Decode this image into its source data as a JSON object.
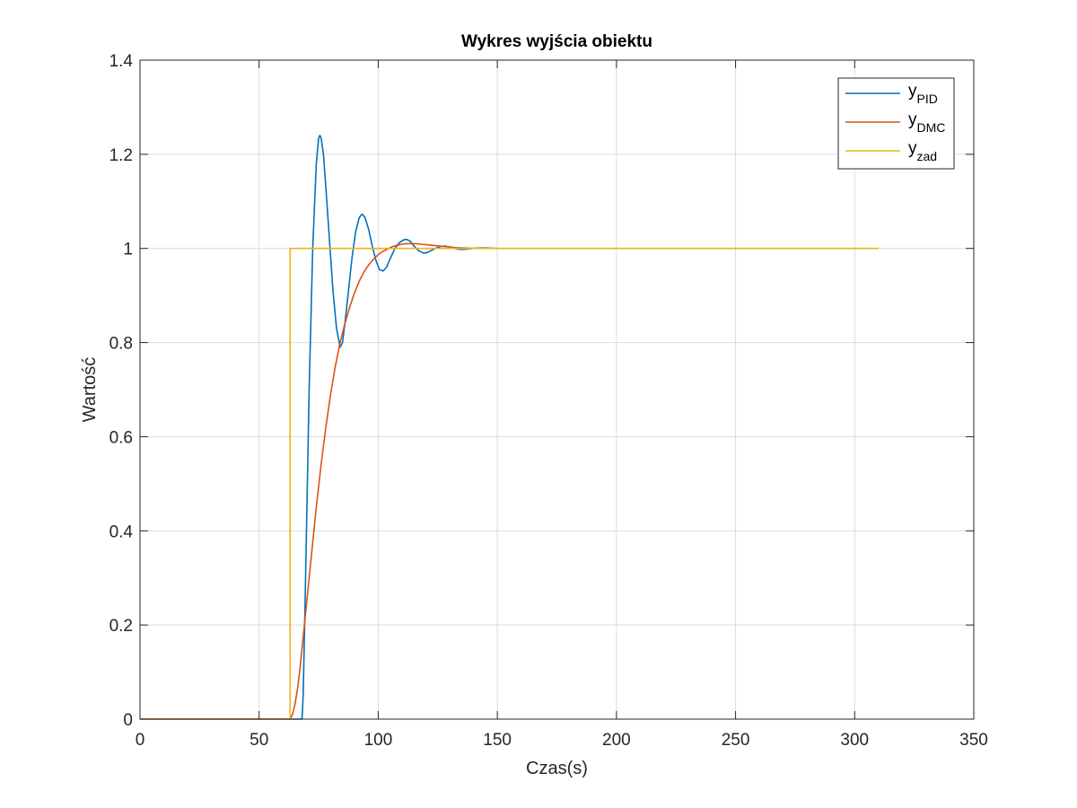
{
  "chart_data": {
    "type": "line",
    "title": "Wykres wyjścia obiektu",
    "xlabel": "Czas(s)",
    "ylabel": "Wartość",
    "xlim": [
      0,
      350
    ],
    "ylim": [
      0,
      1.4
    ],
    "xticks": [
      0,
      50,
      100,
      150,
      200,
      250,
      300,
      350
    ],
    "yticks": [
      0,
      0.2,
      0.4,
      0.6,
      0.8,
      1,
      1.2,
      1.4
    ],
    "xtick_labels": [
      "0",
      "50",
      "100",
      "150",
      "200",
      "250",
      "300",
      "350"
    ],
    "ytick_labels": [
      "0",
      "0.2",
      "0.4",
      "0.6",
      "0.8",
      "1",
      "1.2",
      "1.4"
    ],
    "grid": true,
    "legend_position": "top-right",
    "series": [
      {
        "name": "y_PID",
        "label_base": "y",
        "label_sub": "PID",
        "color": "#0072BD",
        "x": [
          0,
          68,
          68.5,
          69.5,
          71,
          72.5,
          74,
          75,
          75.5,
          76,
          77,
          78,
          79.5,
          81,
          82.5,
          84,
          85,
          86,
          87.5,
          89,
          90.5,
          92,
          93,
          93.5,
          94.5,
          96,
          97.5,
          99,
          100.5,
          102,
          103.5,
          105,
          107,
          109,
          111,
          112,
          113.5,
          115,
          117,
          119,
          120.5,
          122,
          124,
          126,
          128,
          130,
          132,
          134,
          136,
          138,
          140,
          143,
          146,
          148,
          150
        ],
        "y": [
          0,
          0,
          0.05,
          0.3,
          0.7,
          1.0,
          1.18,
          1.235,
          1.24,
          1.235,
          1.2,
          1.13,
          1.02,
          0.91,
          0.83,
          0.79,
          0.8,
          0.84,
          0.91,
          0.98,
          1.035,
          1.065,
          1.072,
          1.072,
          1.065,
          1.04,
          1.005,
          0.975,
          0.955,
          0.952,
          0.96,
          0.978,
          1.0,
          1.013,
          1.019,
          1.019,
          1.015,
          1.005,
          0.995,
          0.99,
          0.991,
          0.995,
          1.0,
          1.004,
          1.005,
          1.003,
          1.0,
          0.998,
          0.998,
          0.999,
          1.0,
          1.001,
          1.001,
          1.0,
          1.0
        ]
      },
      {
        "name": "y_DMC",
        "label_base": "y",
        "label_sub": "DMC",
        "color": "#D95319",
        "x": [
          0,
          63,
          64,
          65,
          66,
          67,
          68,
          69,
          70,
          72,
          74,
          76,
          78,
          80,
          82,
          84,
          86,
          88,
          90,
          92,
          94,
          96,
          98,
          100,
          102,
          104,
          106,
          108,
          110,
          112,
          114,
          116,
          118,
          120,
          124,
          128,
          132,
          136,
          140,
          145,
          150
        ],
        "y": [
          0,
          0,
          0.01,
          0.03,
          0.06,
          0.1,
          0.15,
          0.2,
          0.25,
          0.35,
          0.45,
          0.54,
          0.62,
          0.69,
          0.75,
          0.8,
          0.84,
          0.875,
          0.905,
          0.93,
          0.95,
          0.965,
          0.977,
          0.987,
          0.994,
          0.999,
          1.004,
          1.007,
          1.009,
          1.01,
          1.01,
          1.01,
          1.009,
          1.008,
          1.006,
          1.004,
          1.002,
          1.001,
          1.0,
          1.0,
          1.0
        ]
      },
      {
        "name": "y_zad",
        "label_base": "y",
        "label_sub": "zad",
        "color": "#EDB120",
        "x": [
          0,
          63,
          63,
          310
        ],
        "y": [
          0,
          0,
          1,
          1
        ]
      }
    ]
  }
}
